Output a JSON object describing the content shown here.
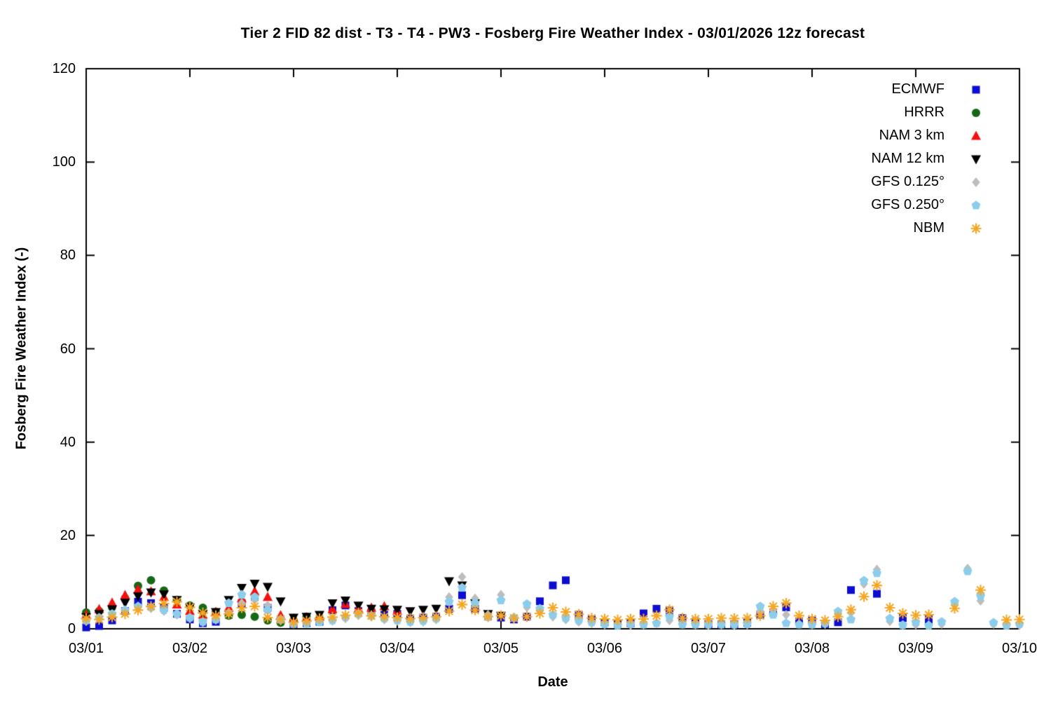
{
  "chart_data": {
    "type": "scatter",
    "title": "Tier 2 FID 82 dist - T3 - T4 - PW3 - Fosberg Fire Weather Index - 03/01/2026 12z forecast",
    "xlabel": "Date",
    "ylabel": "Fosberg Fire Weather Index (-)",
    "x_tick_labels": [
      "03/01",
      "03/02",
      "03/03",
      "03/04",
      "03/05",
      "03/06",
      "03/07",
      "03/08",
      "03/09",
      "03/10"
    ],
    "y_tick_values": [
      0,
      20,
      40,
      60,
      80,
      100,
      120
    ],
    "ylim": [
      0,
      120
    ],
    "x_range_days": [
      0,
      9
    ],
    "sample_step_days": 0.125,
    "grid": false,
    "legend_position": "top-right-inside",
    "frame_color": "#000000",
    "series": [
      {
        "name": "ECMWF",
        "marker": "square",
        "color": "#0d0dd2",
        "start": 0,
        "step": 0.125,
        "values": [
          0.3,
          0.6,
          1.8,
          3.8,
          5.8,
          5.5,
          4.5,
          3.2,
          2.0,
          1.2,
          1.5,
          3.0,
          5.5,
          6.8,
          4.5,
          2.0,
          1.0,
          1.2,
          1.5,
          4.0,
          5.0,
          3.8,
          3.5,
          3.0,
          3.2,
          2.2,
          2.4,
          2.6,
          4.3,
          7.2,
          4.3,
          2.8,
          2.4,
          2.0,
          2.6,
          5.9,
          9.3,
          10.4,
          3.0,
          2.0,
          1.4,
          1.1,
          1.2,
          3.3,
          4.3,
          3.9,
          2.3,
          1.5,
          1.0,
          1.0,
          1.0,
          1.3,
          3.0,
          3.5,
          4.6,
          1.6,
          1.8,
          1.0,
          1.4,
          8.3,
          null,
          7.5,
          null,
          2.3,
          null,
          2.0
        ]
      },
      {
        "name": "HRRR",
        "marker": "circle",
        "color": "#156915",
        "start": 0,
        "step": 0.125,
        "values": [
          3.5,
          3.8,
          4.6,
          6.5,
          9.2,
          10.4,
          8.2,
          6.2,
          5.0,
          4.5,
          3.6,
          2.8,
          3.0,
          2.6,
          1.8,
          1.3,
          1.8,
          2.6,
          2.2
        ]
      },
      {
        "name": "NAM 3 km",
        "marker": "triangle-up",
        "color": "#f50f0f",
        "start": 0,
        "step": 0.125,
        "values": [
          3.0,
          4.2,
          5.6,
          7.2,
          8.4,
          8.0,
          6.8,
          5.2,
          3.8,
          3.0,
          3.6,
          4.5,
          6.5,
          8.0,
          6.8,
          2.9,
          2.2,
          2.4,
          2.6,
          4.2,
          5.3,
          4.3,
          4.5,
          4.8,
          3.8
        ]
      },
      {
        "name": "NAM 12 km",
        "marker": "triangle-down",
        "color": "#000000",
        "start": 0,
        "step": 0.125,
        "values": [
          2.5,
          3.2,
          4.2,
          5.6,
          7.0,
          7.8,
          7.4,
          6.2,
          4.6,
          3.2,
          3.6,
          6.2,
          8.8,
          9.7,
          9.0,
          5.9,
          2.4,
          2.6,
          3.0,
          5.5,
          6.1,
          5.0,
          4.3,
          4.2,
          4.1,
          3.8,
          4.1,
          4.3,
          10.2,
          9.3,
          5.5,
          3.2,
          2.8
        ]
      },
      {
        "name": "GFS 0.125°",
        "marker": "diamond",
        "color": "#bdbdbd",
        "start": 0,
        "step": 0.125,
        "values": [
          1.6,
          2.2,
          3.0,
          3.8,
          4.6,
          4.4,
          3.8,
          3.0,
          2.2,
          1.4,
          1.9,
          3.5,
          5.5,
          6.2,
          5.0,
          1.8,
          1.1,
          1.2,
          1.5,
          1.7,
          2.2,
          2.9,
          2.6,
          2.0,
          1.7,
          1.4,
          1.5,
          2.0,
          6.8,
          11.1,
          6.5,
          3.0,
          7.3,
          2.2,
          4.6,
          3.8,
          2.6,
          2.0,
          1.5,
          1.2,
          0.9,
          0.8,
          0.8,
          0.9,
          1.2,
          1.8,
          1.0,
          0.9,
          0.8,
          0.9,
          0.8,
          0.9,
          3.8,
          3.9,
          3.0,
          1.0,
          0.9,
          1.0,
          3.0,
          3.4,
          9.6,
          12.7,
          1.6,
          0.8,
          0.9,
          0.8,
          1.0,
          5.5,
          12.9,
          6.0,
          1.0,
          0.8,
          0.8
        ]
      },
      {
        "name": "GFS 0.250°",
        "marker": "pentagon",
        "color": "#8ccdec",
        "start": 0,
        "step": 0.125,
        "values": [
          1.8,
          2.4,
          3.2,
          4.0,
          4.8,
          4.6,
          4.0,
          3.2,
          2.4,
          1.5,
          2.0,
          5.5,
          7.3,
          6.8,
          4.0,
          2.0,
          1.0,
          1.1,
          1.4,
          1.8,
          2.5,
          3.2,
          2.8,
          2.2,
          1.8,
          1.5,
          1.7,
          2.2,
          5.8,
          8.8,
          5.5,
          2.5,
          6.1,
          2.4,
          5.3,
          4.3,
          3.0,
          2.3,
          1.8,
          1.4,
          1.0,
          0.7,
          1.0,
          0.9,
          1.2,
          2.6,
          0.9,
          0.9,
          0.9,
          0.9,
          0.9,
          1.0,
          4.8,
          3.0,
          1.2,
          0.9,
          0.9,
          1.2,
          3.7,
          2.0,
          10.3,
          11.9,
          2.2,
          0.8,
          1.4,
          0.7,
          1.5,
          5.8,
          12.3,
          7.0,
          1.3,
          0.7,
          1.0
        ]
      },
      {
        "name": "NBM",
        "marker": "asterisk",
        "color": "#f5a623",
        "start": 0,
        "step": 0.125,
        "values": [
          2.2,
          2.0,
          2.5,
          3.2,
          4.0,
          4.8,
          5.4,
          5.8,
          4.6,
          3.4,
          2.8,
          3.2,
          4.5,
          4.8,
          2.4,
          2.0,
          1.4,
          1.7,
          2.2,
          2.5,
          2.9,
          3.4,
          2.8,
          2.6,
          2.4,
          2.2,
          2.4,
          2.6,
          3.8,
          5.2,
          4.0,
          2.6,
          2.8,
          2.3,
          2.6,
          3.3,
          4.5,
          3.6,
          3.1,
          2.3,
          2.1,
          1.9,
          2.1,
          2.1,
          2.8,
          4.1,
          2.3,
          2.1,
          2.1,
          2.3,
          2.2,
          2.3,
          2.8,
          4.8,
          5.5,
          2.8,
          2.1,
          1.8,
          2.6,
          4.1,
          6.9,
          9.3,
          4.5,
          3.3,
          2.9,
          3.0,
          null,
          4.4,
          null,
          8.3,
          null,
          1.9,
          2.0
        ]
      }
    ]
  }
}
